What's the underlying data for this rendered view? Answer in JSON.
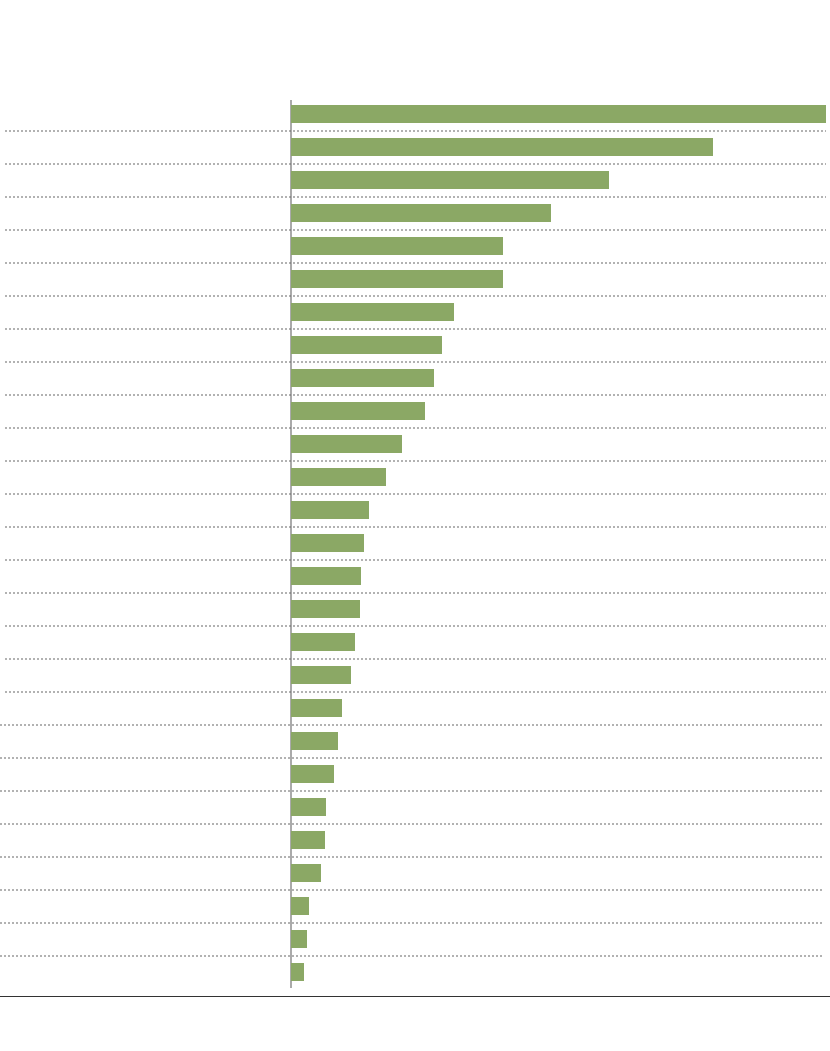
{
  "chart_data": {
    "type": "barh",
    "categories": [
      null,
      null,
      null,
      null,
      null,
      null,
      null,
      null,
      null,
      null,
      null,
      null,
      null,
      null,
      null,
      null,
      null,
      null,
      null,
      null,
      null,
      null,
      null,
      null,
      null,
      null,
      null
    ],
    "values": [
      535,
      422,
      318,
      260,
      212,
      212,
      163,
      151,
      143,
      134,
      111,
      95,
      78,
      73,
      70,
      69,
      64,
      60,
      51,
      47,
      43,
      35,
      34,
      30,
      18,
      16,
      13
    ],
    "color": "#8ba865",
    "xlim": [
      0,
      535
    ]
  }
}
